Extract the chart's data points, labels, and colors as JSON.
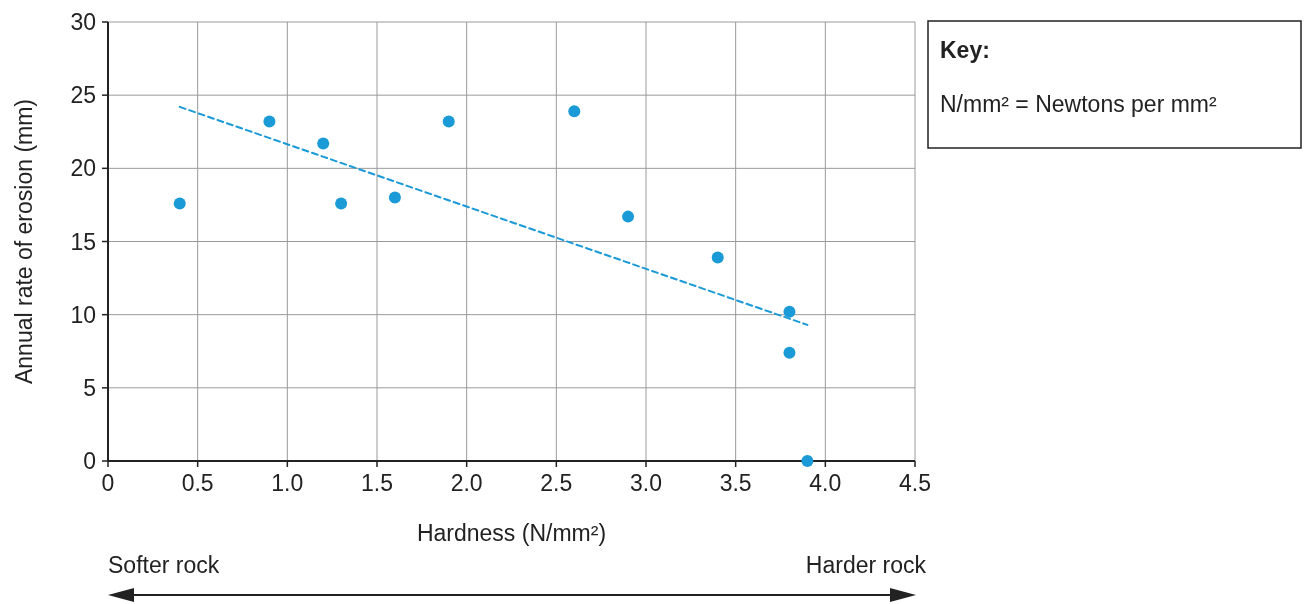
{
  "chart_data": {
    "type": "scatter",
    "xlabel": "Hardness (N/mm²)",
    "ylabel": "Annual rate of erosion (mm)",
    "x": [
      0.4,
      0.9,
      1.2,
      1.3,
      1.6,
      1.9,
      2.6,
      2.9,
      3.4,
      3.8,
      3.8,
      3.9
    ],
    "series": [
      {
        "color": "#1a9ad6",
        "values": [
          17.6,
          23.2,
          21.7,
          17.6,
          18.0,
          23.2,
          23.9,
          16.7,
          13.9,
          10.2,
          7.4,
          0
        ],
        "marker": "circle"
      },
      {
        "type": "line",
        "color": "#1a9ad6",
        "x": [
          0.4,
          3.9
        ],
        "values": [
          24.2,
          9.3
        ],
        "line_style": "dashed",
        "marker": "none"
      }
    ],
    "xlim": [
      0,
      4.5
    ],
    "xticks": [
      0,
      0.5,
      {
        "value": 1,
        "label": "1.0"
      },
      1.5,
      {
        "value": 2,
        "label": "2.0"
      },
      2.5,
      {
        "value": 3,
        "label": "3.0"
      },
      3.5,
      {
        "value": 4,
        "label": "4.0"
      },
      4.5
    ],
    "ylim": [
      0,
      30
    ],
    "yticks": [
      0,
      5,
      10,
      15,
      20,
      25,
      30
    ],
    "grid": true,
    "annotations": [
      "Key:",
      "N/mm² = Newtons per mm²",
      "Softer rock",
      "Harder rock"
    ]
  }
}
